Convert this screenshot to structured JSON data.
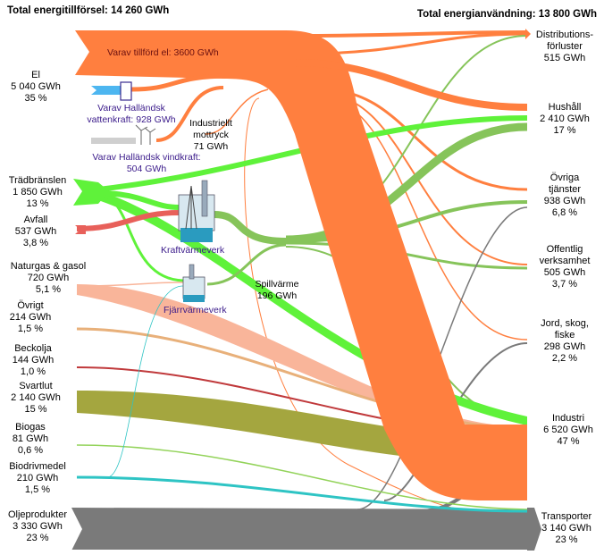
{
  "header": {
    "total_supply": "Total energitillförsel: 14 260 GWh",
    "total_use": "Total energianvändning: 13 800 GWh"
  },
  "sources": {
    "el": {
      "name": "El",
      "value": "5 040 GWh",
      "share": "35 %"
    },
    "tradbransle": {
      "name": "Trädbränslen",
      "value": "1 850 GWh",
      "share": "13 %"
    },
    "avfall": {
      "name": "Avfall",
      "value": "537 GWh",
      "share": "3,8 %"
    },
    "naturgas": {
      "name": "Naturgas & gasol",
      "value": "720 GWh",
      "share": "5,1 %"
    },
    "ovrigt": {
      "name": "Övrigt",
      "value": "214 GWh",
      "share": "1,5 %"
    },
    "beckolja": {
      "name": "Beckolja",
      "value": "144 GWh",
      "share": "1,0 %"
    },
    "svartlut": {
      "name": "Svartlut",
      "value": "2 140 GWh",
      "share": "15 %"
    },
    "biogas": {
      "name": "Biogas",
      "value": "81 GWh",
      "share": "0,6 %"
    },
    "biodrivmedel": {
      "name": "Biodrivmedel",
      "value": "210 GWh",
      "share": "1,5 %"
    },
    "olja": {
      "name": "Oljeprodukter",
      "value": "3 330 GWh",
      "share": "23 %"
    }
  },
  "sub_labels": {
    "tillford_el": "Varav tillförd el: 3600 GWh",
    "vattenkraft_1": "Varav Halländsk",
    "vattenkraft_2": "vattenkraft: 928 GWh",
    "vindkraft_1": "Varav Halländsk vindkraft:",
    "vindkraft_2": "504 GWh",
    "industriellt_1": "Industriellt",
    "industriellt_2": "mottryck",
    "industriellt_3": "71 GWh",
    "kraftvarmeverk": "Kraftvärmeverk",
    "fjarrvarmeverk": "Fjärrvärmeverk",
    "spillvarme_1": "Spillvärme",
    "spillvarme_2": "196 GWh"
  },
  "sinks": {
    "distribution": {
      "name1": "Distributions-",
      "name2": "förluster",
      "value": "515 GWh"
    },
    "hushall": {
      "name": "Hushåll",
      "value": "2 410 GWh",
      "share": "17 %"
    },
    "ovriga": {
      "name1": "Övriga",
      "name2": "tjänster",
      "value": "938 GWh",
      "share": "6,8 %"
    },
    "offentlig": {
      "name1": "Offentlig",
      "name2": "verksamhet",
      "value": "505 GWh",
      "share": "3,7 %"
    },
    "jord": {
      "name1": "Jord, skog,",
      "name2": "fiske",
      "value": "298 GWh",
      "share": "2,2 %"
    },
    "industri": {
      "name": "Industri",
      "value": "6 520 GWh",
      "share": "47 %"
    },
    "transporter": {
      "name": "Transporter",
      "value": "3 140 GWh",
      "share": "23 %"
    }
  },
  "colors": {
    "el": "#ff7f3f",
    "wood": "#5ff23a",
    "avfall": "#e8605a",
    "naturgas": "#f9b59a",
    "ovrigt": "#e8b07a",
    "beckolja": "#c0393b",
    "svartlut": "#a4a63f",
    "biogas": "#93d35a",
    "biodrivmedel": "#2ec4c4",
    "olja": "#7a7a7a",
    "district": "#86c45a",
    "hydro": "#4db6f0"
  }
}
